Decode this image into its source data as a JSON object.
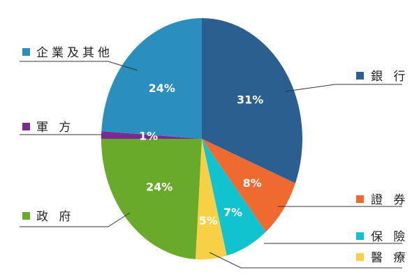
{
  "chart_data": {
    "type": "pie",
    "title": "",
    "unit": "%",
    "slices": [
      {
        "label": "銀 行",
        "value": 31,
        "display": "31%",
        "color": "#2a5f8f"
      },
      {
        "label": "證 券",
        "value": 8,
        "display": "8%",
        "color": "#ef6a31"
      },
      {
        "label": "保 險",
        "value": 7,
        "display": "7%",
        "color": "#10c3ce"
      },
      {
        "label": "醫 療",
        "value": 5,
        "display": "5%",
        "color": "#f7d046"
      },
      {
        "label": "政 府",
        "value": 24,
        "display": "24%",
        "color": "#6aaa2a"
      },
      {
        "label": "軍 方",
        "value": 1,
        "display": "1%",
        "color": "#7a2a95"
      },
      {
        "label": "企業及其他",
        "value": 24,
        "display": "24%",
        "color": "#2a8fbd"
      }
    ],
    "legend": "callouts-both-sides"
  }
}
